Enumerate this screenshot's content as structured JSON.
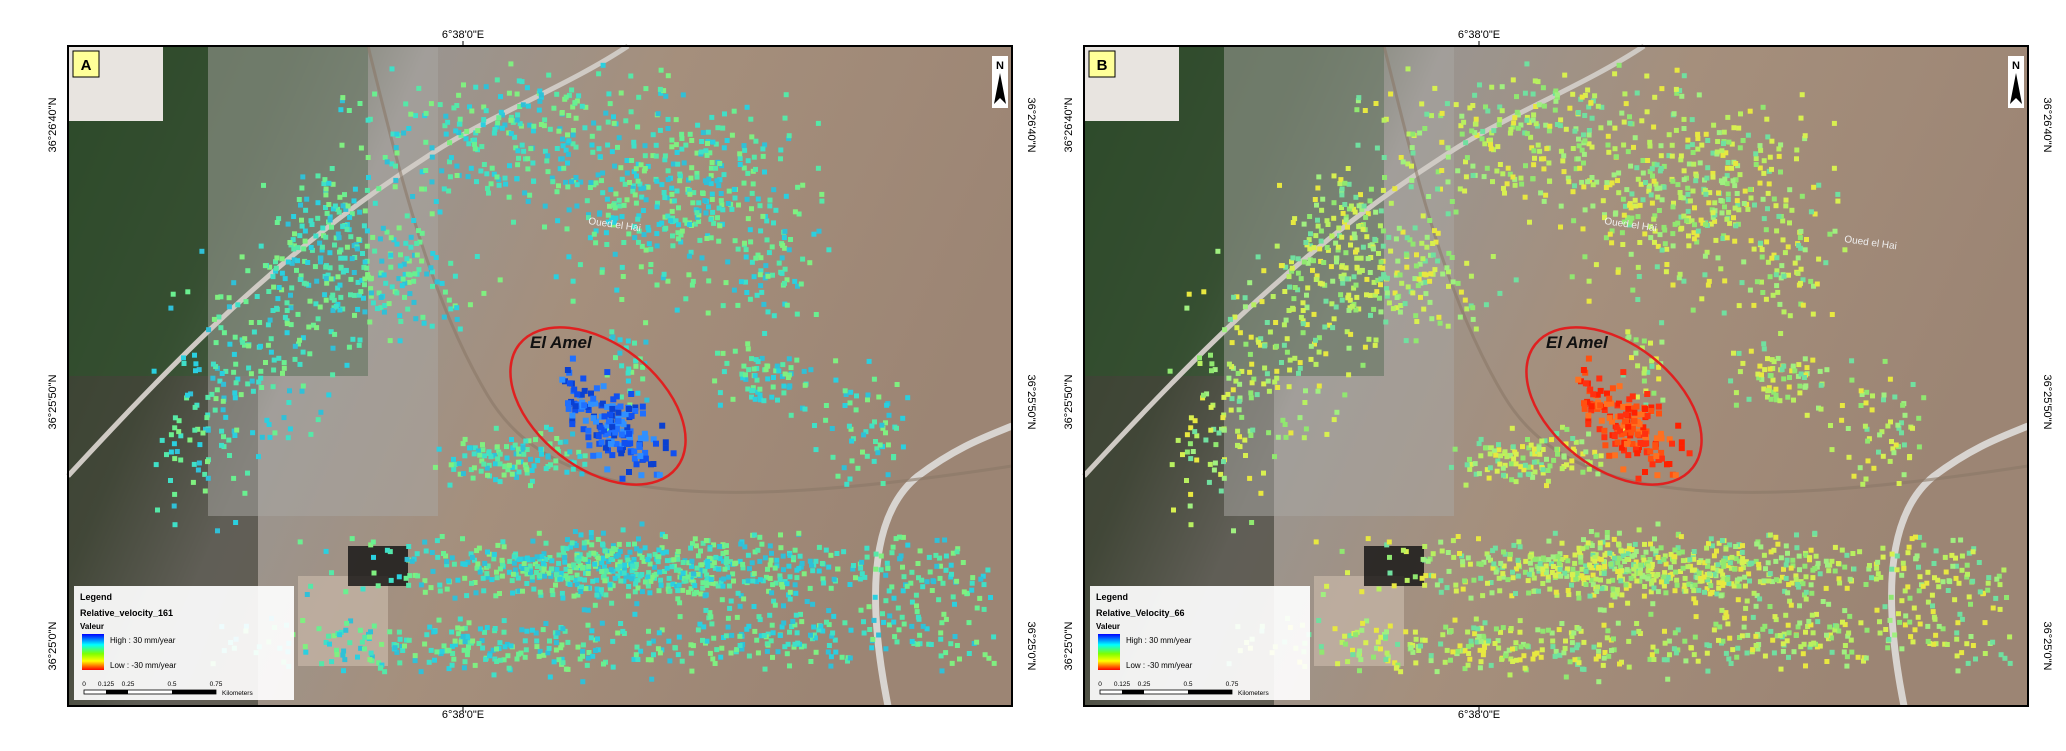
{
  "panels": [
    {
      "label": "A",
      "lon_label": "6°38'0\"E",
      "lat_labels": [
        "36°26'40\"N",
        "36°25'50\"N",
        "36°25'0\"N"
      ],
      "place": "El Amel",
      "rivers": [
        "Oued el Hai"
      ],
      "north": "N",
      "legend": {
        "title": "Legend",
        "layer": "Relative_velocity_161",
        "field": "Valeur",
        "high": "High : 30 mm/year",
        "low": "Low : -30 mm/year"
      },
      "scale": {
        "ticks": [
          "0",
          "0.125",
          "0.25",
          "0.5",
          "0.75"
        ],
        "unit": "Kilometers"
      }
    },
    {
      "label": "B",
      "lon_label": "6°38'0\"E",
      "lat_labels": [
        "36°26'40\"N",
        "36°25'50\"N",
        "36°25'0\"N"
      ],
      "place": "El Amel",
      "rivers": [
        "Oued el Hai",
        "Oued el Hai"
      ],
      "north": "N",
      "legend": {
        "title": "Legend",
        "layer": "Relative_Velocity_66",
        "field": "Valeur",
        "high": "High : 30 mm/year",
        "low": "Low : -30 mm/year"
      },
      "scale": {
        "ticks": [
          "0",
          "0.125",
          "0.25",
          "0.5",
          "0.75"
        ],
        "unit": "Kilometers"
      }
    }
  ]
}
